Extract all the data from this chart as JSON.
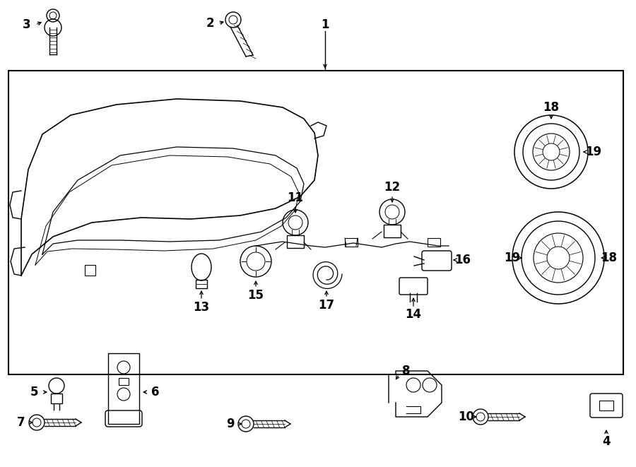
{
  "bg_color": "#ffffff",
  "line_color": "#000000",
  "fig_width": 9.0,
  "fig_height": 6.61,
  "lw": 1.0
}
